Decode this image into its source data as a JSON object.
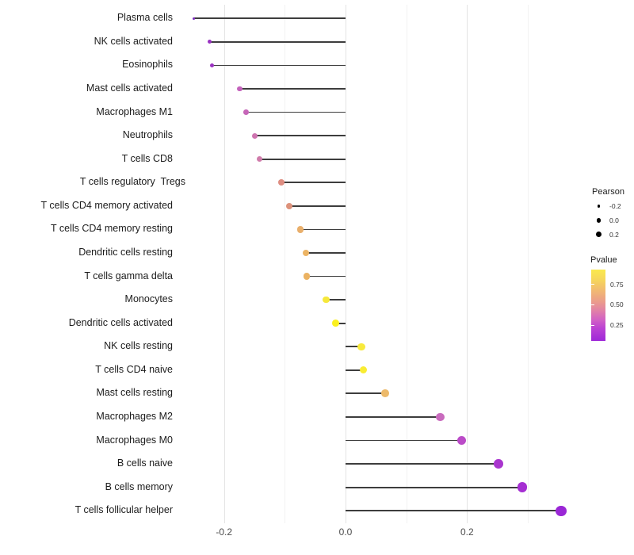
{
  "chart_data": {
    "type": "lollipop",
    "title": "",
    "xlabel": "",
    "ylabel": "",
    "xlim": [
      -0.27,
      0.4
    ],
    "grid": true,
    "x_ticks": [
      {
        "label": "-0.2",
        "value": -0.2
      },
      {
        "label": "0.0",
        "value": 0.0
      },
      {
        "label": "0.2",
        "value": 0.2
      }
    ],
    "x_minor_ticks": [
      -0.1,
      0.1,
      0.3
    ],
    "points": [
      {
        "label": "Plasma cells",
        "pearson": -0.25,
        "pvalue": 0.02,
        "color": "#7E2AC0",
        "d": 3.5
      },
      {
        "label": "NK cells activated",
        "pearson": -0.224,
        "pvalue": 0.07,
        "color": "#9932C2",
        "d": 5.2
      },
      {
        "label": "Eosinophils",
        "pearson": -0.22,
        "pvalue": 0.08,
        "color": "#9B33C1",
        "d": 5.2
      },
      {
        "label": "Mast cells activated",
        "pearson": -0.174,
        "pvalue": 0.22,
        "color": "#C462BC",
        "d": 6.7
      },
      {
        "label": "Macrophages M1",
        "pearson": -0.164,
        "pvalue": 0.24,
        "color": "#C666B8",
        "d": 6.7
      },
      {
        "label": "Neutrophils",
        "pearson": -0.149,
        "pvalue": 0.28,
        "color": "#CE74B0",
        "d": 7.0
      },
      {
        "label": "T cells CD8",
        "pearson": -0.142,
        "pvalue": 0.3,
        "color": "#D07CAB",
        "d": 7.2
      },
      {
        "label": "T cells regulatory  Tregs",
        "pearson": -0.106,
        "pvalue": 0.47,
        "color": "#DE8D81",
        "d": 8.0,
        "label_dx": 16
      },
      {
        "label": "T cells CD4 memory activated",
        "pearson": -0.093,
        "pvalue": 0.5,
        "color": "#DD927B",
        "d": 8.0
      },
      {
        "label": "T cells CD4 memory resting",
        "pearson": -0.074,
        "pvalue": 0.62,
        "color": "#E9AF6B",
        "d": 8.3
      },
      {
        "label": "Dendritic cells resting",
        "pearson": -0.065,
        "pvalue": 0.64,
        "color": "#ECB465",
        "d": 8.3
      },
      {
        "label": "T cells gamma delta",
        "pearson": -0.064,
        "pvalue": 0.64,
        "color": "#EBB262",
        "d": 8.3
      },
      {
        "label": "Monocytes",
        "pearson": -0.032,
        "pvalue": 0.9,
        "color": "#F6E83B",
        "d": 8.7
      },
      {
        "label": "Dendritic cells activated",
        "pearson": -0.016,
        "pvalue": 0.95,
        "color": "#FAF01F",
        "d": 8.7
      },
      {
        "label": "NK cells resting",
        "pearson": 0.026,
        "pvalue": 0.9,
        "color": "#F8EA3C",
        "d": 9.3
      },
      {
        "label": "T cells CD4 naive",
        "pearson": 0.029,
        "pvalue": 0.92,
        "color": "#F9EC32",
        "d": 9.3
      },
      {
        "label": "Mast cells resting",
        "pearson": 0.065,
        "pvalue": 0.66,
        "color": "#EDBA6B",
        "d": 9.8
      },
      {
        "label": "Macrophages M2",
        "pearson": 0.156,
        "pvalue": 0.24,
        "color": "#C96BBE",
        "d": 10.3
      },
      {
        "label": "Macrophages M0",
        "pearson": 0.191,
        "pvalue": 0.16,
        "color": "#BB4BC8",
        "d": 11.0
      },
      {
        "label": "B cells naive",
        "pearson": 0.252,
        "pvalue": 0.11,
        "color": "#A935CE",
        "d": 11.7
      },
      {
        "label": "B cells memory",
        "pearson": 0.291,
        "pvalue": 0.09,
        "color": "#A52ED2",
        "d": 12.4
      },
      {
        "label": "T cells follicular helper",
        "pearson": 0.355,
        "pvalue": 0.05,
        "color": "#9A27D6",
        "d": 13.4
      }
    ],
    "legend": {
      "size": {
        "title": "Pearson",
        "entries": [
          {
            "label": "-0.2",
            "d": 3.5
          },
          {
            "label": "0.0",
            "d": 5.5
          },
          {
            "label": "0.2",
            "d": 7.0
          }
        ]
      },
      "color": {
        "title": "Pvalue",
        "labels": [
          {
            "text": "0.75",
            "value": 0.75
          },
          {
            "text": "0.50",
            "value": 0.5
          },
          {
            "text": "0.25",
            "value": 0.25
          }
        ],
        "bar_top_p": 0.93,
        "bar_bottom_p": 0.06,
        "gradient_stops": [
          {
            "offset": 0,
            "color": "#FAE94D"
          },
          {
            "offset": 15,
            "color": "#F6D55C"
          },
          {
            "offset": 30,
            "color": "#F1B873"
          },
          {
            "offset": 45,
            "color": "#EB9C8B"
          },
          {
            "offset": 58,
            "color": "#E180A8"
          },
          {
            "offset": 70,
            "color": "#D262C4"
          },
          {
            "offset": 82,
            "color": "#BC43D3"
          },
          {
            "offset": 100,
            "color": "#9E28D8"
          }
        ]
      }
    }
  }
}
